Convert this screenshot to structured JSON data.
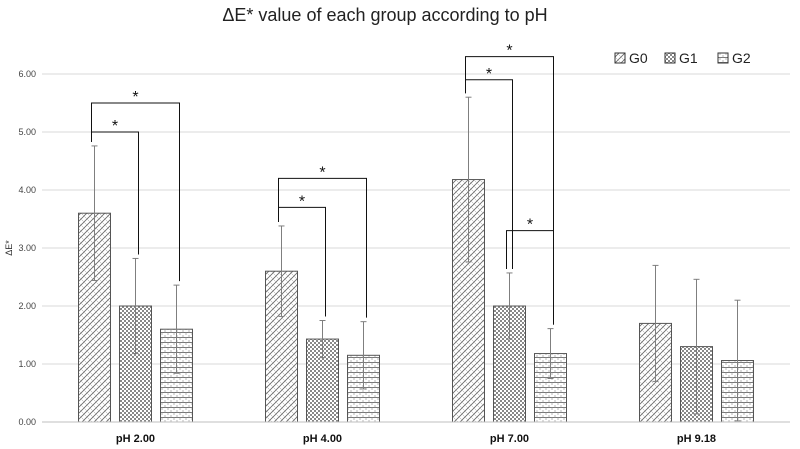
{
  "chart_data": {
    "type": "bar",
    "title": "ΔE* value of each group according to pH",
    "xlabel": "",
    "ylabel": "ΔE*",
    "ylim": [
      0,
      6
    ],
    "yticks": [
      "0.00",
      "1.00",
      "2.00",
      "3.00",
      "4.00",
      "5.00",
      "6.00"
    ],
    "grid": true,
    "legend_position": "top-right",
    "categories": [
      "pH 2.00",
      "pH 4.00",
      "pH 7.00",
      "pH 9.18"
    ],
    "series": [
      {
        "name": "G0",
        "values": [
          3.6,
          2.6,
          4.18,
          1.7
        ],
        "errors": [
          1.16,
          0.78,
          1.42,
          1.0
        ]
      },
      {
        "name": "G1",
        "values": [
          2.0,
          1.43,
          2.0,
          1.3
        ],
        "errors": [
          0.82,
          0.32,
          0.57,
          1.16
        ]
      },
      {
        "name": "G2",
        "values": [
          1.6,
          1.15,
          1.18,
          1.06
        ],
        "errors": [
          0.76,
          0.58,
          0.43,
          1.04
        ]
      }
    ],
    "significance": [
      {
        "category": 0,
        "from": 0,
        "to": 1,
        "level": 5.0,
        "label": "*"
      },
      {
        "category": 0,
        "from": 0,
        "to": 2,
        "level": 5.5,
        "label": "*"
      },
      {
        "category": 1,
        "from": 0,
        "to": 1,
        "level": 3.7,
        "label": "*"
      },
      {
        "category": 1,
        "from": 0,
        "to": 2,
        "level": 4.2,
        "label": "*"
      },
      {
        "category": 2,
        "from": 0,
        "to": 1,
        "level": 5.9,
        "label": "*"
      },
      {
        "category": 2,
        "from": 0,
        "to": 2,
        "level": 6.3,
        "label": "*"
      },
      {
        "category": 2,
        "from": 1,
        "to": 2,
        "level": 3.3,
        "label": "*"
      }
    ]
  },
  "colors": {
    "bar_fill": "#ffffff",
    "bar_stroke": "#555555",
    "pattern": "#666666",
    "grid": "#d9d9d9",
    "axis": "#bfbfbf",
    "errorbar": "#7f7f7f"
  }
}
